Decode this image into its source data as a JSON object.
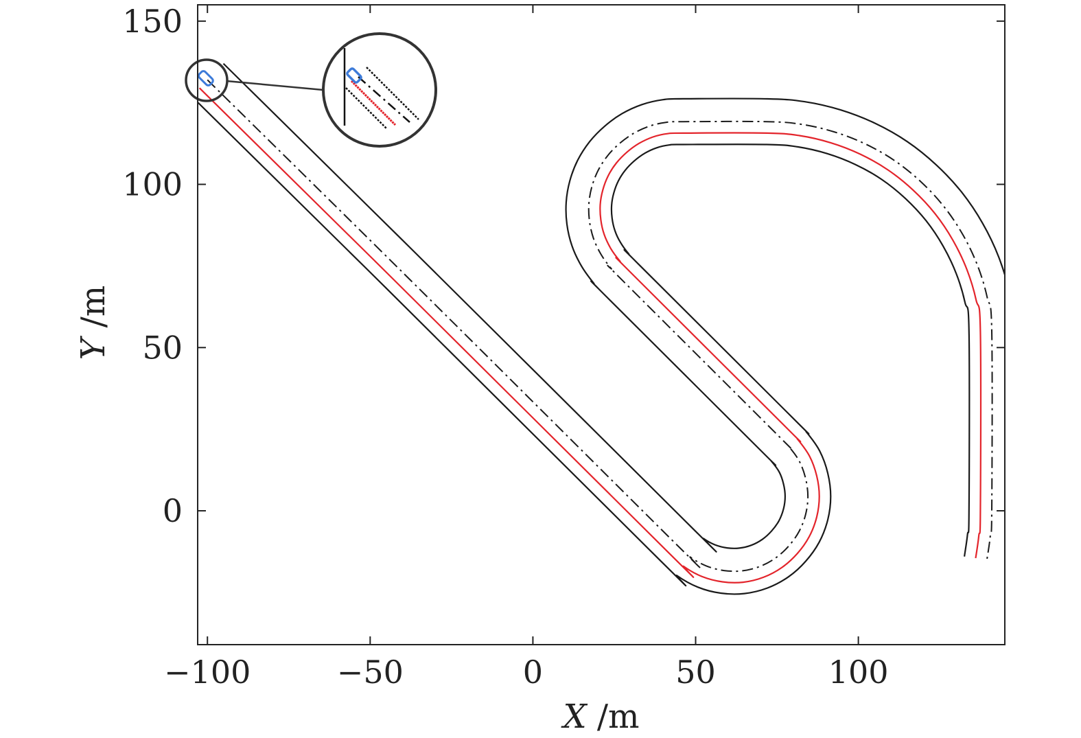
{
  "chart_data": {
    "type": "line",
    "title": "",
    "xlabel": {
      "var": "X",
      "unit": " /m"
    },
    "ylabel": {
      "var": "Y",
      "unit": " /m"
    },
    "xlim": [
      -103,
      145
    ],
    "ylim": [
      -41,
      155
    ],
    "xticks": [
      -100,
      -50,
      0,
      50,
      100
    ],
    "yticks": [
      0,
      50,
      100,
      150
    ],
    "xtick_labels": [
      "−100",
      "−50",
      "0",
      "50",
      "100"
    ],
    "ytick_labels": [
      "0",
      "50",
      "100",
      "150"
    ],
    "grid": false,
    "legend": null,
    "road": {
      "centerline": [
        [
          -100,
          132
        ],
        [
          -40.6,
          73.6
        ],
        [
          44.2,
          -10.4
        ],
        [
          48.4,
          -14.2
        ],
        [
          53.3,
          -16.9
        ],
        [
          58.7,
          -18.3
        ],
        [
          64.2,
          -18.4
        ],
        [
          69.6,
          -17.1
        ],
        [
          74.5,
          -14.5
        ],
        [
          78.6,
          -10.8
        ],
        [
          81.8,
          -6.3
        ],
        [
          83.8,
          -1.1
        ],
        [
          84.5,
          4.4
        ],
        [
          83.8,
          9.9
        ],
        [
          81.9,
          15.1
        ],
        [
          78.7,
          19.6
        ],
        [
          75.0,
          23.4
        ],
        [
          27.6,
          70.5
        ],
        [
          24.0,
          74.3
        ],
        [
          20.9,
          78.6
        ],
        [
          18.6,
          83.5
        ],
        [
          17.4,
          88.7
        ],
        [
          17.2,
          94.0
        ],
        [
          18.1,
          99.2
        ],
        [
          20.0,
          104.2
        ],
        [
          22.9,
          108.7
        ],
        [
          26.6,
          112.5
        ],
        [
          30.9,
          115.6
        ],
        [
          35.7,
          117.8
        ],
        [
          40.9,
          119.0
        ],
        [
          46.2,
          119.2
        ],
        [
          72.0,
          119.2
        ],
        [
          82.4,
          118.4
        ],
        [
          92.5,
          116.1
        ],
        [
          102.1,
          112.4
        ],
        [
          111.1,
          107.3
        ],
        [
          119.2,
          100.8
        ],
        [
          126.3,
          93.2
        ],
        [
          132.1,
          84.6
        ],
        [
          136.6,
          75.2
        ],
        [
          139.6,
          65.3
        ],
        [
          141.0,
          55.0
        ],
        [
          141.0,
          0.0
        ],
        [
          140.5,
          -8.0
        ],
        [
          139.5,
          -15.0
        ]
      ],
      "lane_half_width": 3.5,
      "edge_offset": 7.0,
      "edge_color": "#1a1a1a",
      "centerline_style": "dash-dot",
      "trajectory_offset": -3.5,
      "trajectory_color": "#e3242b"
    },
    "vehicle": {
      "x": -100.5,
      "y": 132.5,
      "heading_deg": -45,
      "color": "#3d7bd9"
    },
    "inset": {
      "type": "zoom-circle",
      "target": [
        -99.5,
        132.3
      ]
    }
  }
}
